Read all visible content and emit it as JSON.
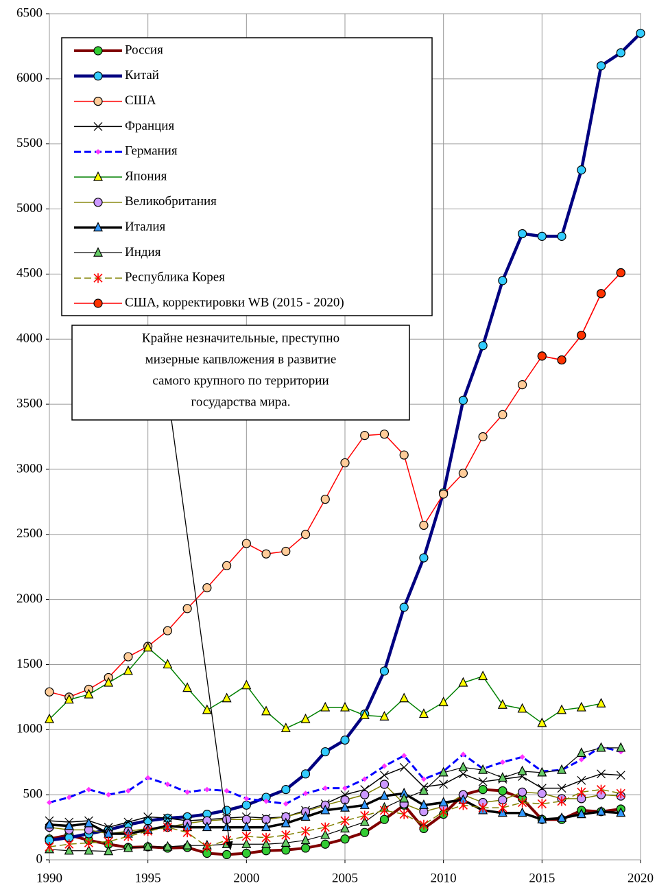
{
  "chart_data": {
    "type": "line",
    "x": [
      1990,
      1991,
      1992,
      1993,
      1994,
      1995,
      1996,
      1997,
      1998,
      1999,
      2000,
      2001,
      2002,
      2003,
      2004,
      2005,
      2006,
      2007,
      2008,
      2009,
      2010,
      2011,
      2012,
      2013,
      2014,
      2015,
      2016,
      2017,
      2018,
      2019,
      2020
    ],
    "xlim": [
      1990,
      2020
    ],
    "xticks": [
      1990,
      1995,
      2000,
      2005,
      2010,
      2015,
      2020
    ],
    "ylim": [
      0,
      6500
    ],
    "yticks": [
      0,
      500,
      1000,
      1500,
      2000,
      2500,
      3000,
      3500,
      4000,
      4500,
      5000,
      5500,
      6000,
      6500
    ],
    "grid": true,
    "legend": "upper left",
    "annotation": [
      "Крайне незначительные, преступно",
      "мизерные  капвложения в развитие",
      "самого крупного по территории",
      "государства мира."
    ],
    "series": [
      {
        "name": "Россия",
        "color": "#800000",
        "width": 4,
        "marker": "circle",
        "marker_color": "#33cc33",
        "values": [
          160,
          190,
          150,
          120,
          95,
          100,
          90,
          95,
          50,
          40,
          50,
          70,
          75,
          90,
          120,
          160,
          210,
          310,
          420,
          240,
          350,
          500,
          540,
          530,
          470,
          310,
          310,
          380,
          370,
          390,
          null
        ]
      },
      {
        "name": "Китай",
        "color": "#000080",
        "width": 4.5,
        "marker": "circle",
        "marker_color": "#33ccff",
        "values": [
          150,
          170,
          200,
          230,
          270,
          300,
          320,
          330,
          350,
          380,
          420,
          480,
          540,
          660,
          830,
          920,
          1120,
          1450,
          1940,
          2320,
          2820,
          3530,
          3950,
          4450,
          4810,
          4790,
          4790,
          5300,
          6100,
          6200,
          6350
        ]
      },
      {
        "name": "США",
        "color": "#ff0000",
        "width": 1.5,
        "marker": "circle",
        "marker_color": "#ffcc99",
        "values": [
          1290,
          1250,
          1310,
          1400,
          1560,
          1640,
          1760,
          1930,
          2090,
          2260,
          2430,
          2350,
          2370,
          2500,
          2770,
          3050,
          3260,
          3270,
          3110,
          2570,
          2810,
          2970,
          3250,
          3420,
          3650,
          3870,
          3840,
          4030,
          4350,
          4510,
          null
        ]
      },
      {
        "name": "Франция",
        "color": "#000000",
        "width": 1.5,
        "marker": "x",
        "marker_color": "#000000",
        "values": [
          300,
          290,
          300,
          250,
          290,
          330,
          320,
          300,
          310,
          320,
          330,
          320,
          330,
          380,
          430,
          500,
          540,
          650,
          710,
          560,
          580,
          660,
          600,
          620,
          640,
          550,
          550,
          610,
          660,
          650,
          null
        ]
      },
      {
        "name": "Германия",
        "color": "#0000ff",
        "width": 3,
        "dash": true,
        "marker": "diamond",
        "marker_color": "#ff33ff",
        "values": [
          440,
          480,
          540,
          500,
          530,
          630,
          580,
          520,
          540,
          530,
          470,
          450,
          430,
          510,
          550,
          550,
          620,
          720,
          800,
          620,
          680,
          810,
          700,
          750,
          790,
          680,
          690,
          770,
          870,
          830,
          null
        ]
      },
      {
        "name": "Япония",
        "color": "#008000",
        "width": 1.5,
        "marker": "triangle",
        "marker_color": "#ffff00",
        "values": [
          1080,
          1230,
          1270,
          1360,
          1450,
          1630,
          1500,
          1320,
          1150,
          1240,
          1340,
          1140,
          1010,
          1080,
          1170,
          1170,
          1110,
          1100,
          1240,
          1120,
          1210,
          1360,
          1410,
          1190,
          1160,
          1050,
          1150,
          1170,
          1200,
          null,
          null
        ]
      },
      {
        "name": "Великобритания",
        "color": "#808000",
        "width": 1.5,
        "marker": "circle",
        "marker_color": "#cc99ff",
        "values": [
          250,
          230,
          230,
          200,
          220,
          240,
          250,
          280,
          300,
          310,
          310,
          310,
          330,
          370,
          420,
          460,
          500,
          580,
          430,
          370,
          410,
          500,
          440,
          460,
          520,
          510,
          470,
          470,
          500,
          490,
          null
        ]
      },
      {
        "name": "Италия",
        "color": "#000000",
        "width": 3.5,
        "marker": "triangle",
        "marker_color": "#3399ff",
        "values": [
          270,
          260,
          280,
          200,
          200,
          230,
          260,
          250,
          250,
          250,
          250,
          250,
          280,
          330,
          380,
          400,
          420,
          490,
          510,
          420,
          440,
          460,
          380,
          360,
          360,
          310,
          320,
          350,
          370,
          360,
          null
        ]
      },
      {
        "name": "Индия",
        "color": "#000000",
        "width": 1.2,
        "marker": "triangle",
        "marker_color": "#66cc66",
        "values": [
          80,
          70,
          70,
          65,
          90,
          100,
          100,
          110,
          110,
          120,
          120,
          120,
          130,
          150,
          190,
          240,
          290,
          400,
          470,
          530,
          670,
          710,
          690,
          630,
          680,
          670,
          690,
          820,
          860,
          860,
          null
        ]
      },
      {
        "name": "Республика Корея",
        "color": "#808000",
        "width": 1.5,
        "dash": true,
        "marker": "star",
        "marker_color": "#ff0000",
        "values": [
          100,
          120,
          130,
          140,
          180,
          220,
          250,
          210,
          100,
          150,
          180,
          170,
          190,
          220,
          250,
          300,
          340,
          380,
          350,
          270,
          370,
          420,
          400,
          400,
          440,
          430,
          450,
          520,
          540,
          510,
          null
        ]
      },
      {
        "name": "США, корректировки WB (2015 - 2020)",
        "color": "#ff0000",
        "width": 1.5,
        "marker": "circle",
        "marker_color": "#ff3300",
        "values": [
          null,
          null,
          null,
          null,
          null,
          null,
          null,
          null,
          null,
          null,
          null,
          null,
          null,
          null,
          null,
          null,
          null,
          null,
          null,
          null,
          null,
          null,
          null,
          null,
          null,
          3870,
          3840,
          4030,
          4350,
          4510,
          null
        ]
      }
    ]
  }
}
